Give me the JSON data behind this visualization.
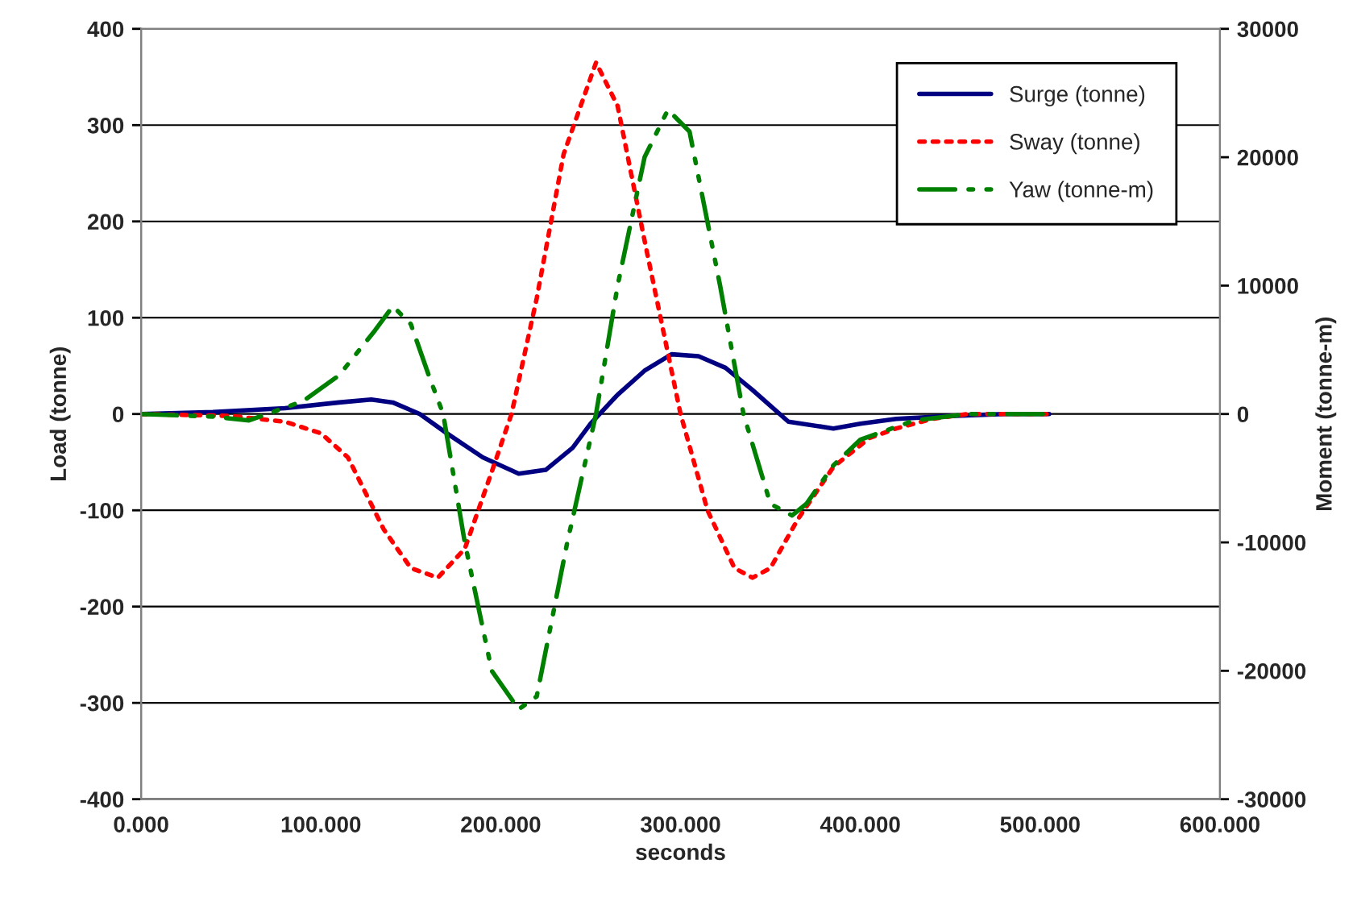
{
  "chart_data": {
    "type": "line",
    "xlabel": "seconds",
    "ylabel": "Load (tonne)",
    "y2label": "Moment (tonne-m)",
    "xlim": [
      0,
      600
    ],
    "xticks": [
      {
        "value": 0,
        "label": "0.000"
      },
      {
        "value": 100,
        "label": "100.000"
      },
      {
        "value": 200,
        "label": "200.000"
      },
      {
        "value": 300,
        "label": "300.000"
      },
      {
        "value": 400,
        "label": "400.000"
      },
      {
        "value": 500,
        "label": "500.000"
      },
      {
        "value": 600,
        "label": "600.000"
      }
    ],
    "ylim": [
      -400,
      400
    ],
    "yticks": [
      -400,
      -300,
      -200,
      -100,
      0,
      100,
      200,
      300,
      400
    ],
    "y2lim": [
      -30000,
      30000
    ],
    "y2ticks": [
      -30000,
      -20000,
      -10000,
      0,
      10000,
      20000,
      30000
    ],
    "grid": "y",
    "legend": "top right",
    "marker": "none",
    "series": [
      {
        "name": "Surge (tonne)",
        "color": "#000080",
        "line_style": "solid",
        "x": [
          0,
          40,
          80,
          110,
          128,
          140,
          155,
          170,
          190,
          210,
          225,
          240,
          250,
          265,
          280,
          295,
          310,
          325,
          340,
          360,
          385,
          400,
          420,
          450,
          480,
          505
        ],
        "values": [
          0,
          2,
          6,
          12,
          15,
          12,
          0,
          -20,
          -45,
          -62,
          -58,
          -35,
          -10,
          20,
          45,
          62,
          60,
          48,
          25,
          -8,
          -15,
          -10,
          -5,
          -2,
          0,
          0
        ]
      },
      {
        "name": "Sway (tonne)",
        "color": "#ff0000",
        "line_style": "dotted",
        "x": [
          0,
          50,
          80,
          100,
          115,
          135,
          150,
          165,
          180,
          195,
          206,
          220,
          235,
          253,
          265,
          280,
          300,
          315,
          330,
          340,
          350,
          365,
          385,
          405,
          420,
          440,
          460,
          505
        ],
        "values": [
          0,
          -2,
          -8,
          -20,
          -45,
          -120,
          -160,
          -170,
          -140,
          -60,
          0,
          120,
          270,
          365,
          320,
          180,
          0,
          -100,
          -160,
          -170,
          -160,
          -110,
          -55,
          -25,
          -15,
          -5,
          0,
          0
        ]
      },
      {
        "name": "Yaw (tonne-m)",
        "color": "#008000",
        "line_style": "dashdot",
        "axis": "y2",
        "x": [
          0,
          40,
          60,
          90,
          110,
          130,
          140,
          150,
          160,
          168,
          180,
          195,
          210,
          220,
          237,
          253,
          265,
          280,
          293,
          305,
          322,
          335,
          350,
          362,
          370,
          385,
          400,
          430,
          460,
          505
        ],
        "values": [
          0,
          -200,
          -500,
          1000,
          3000,
          6500,
          8400,
          7000,
          3000,
          0,
          -10000,
          -20000,
          -23000,
          -22000,
          -10000,
          0,
          10000,
          20000,
          23700,
          22000,
          10000,
          0,
          -7000,
          -7900,
          -7000,
          -4000,
          -2000,
          -500,
          0,
          0
        ]
      }
    ]
  }
}
